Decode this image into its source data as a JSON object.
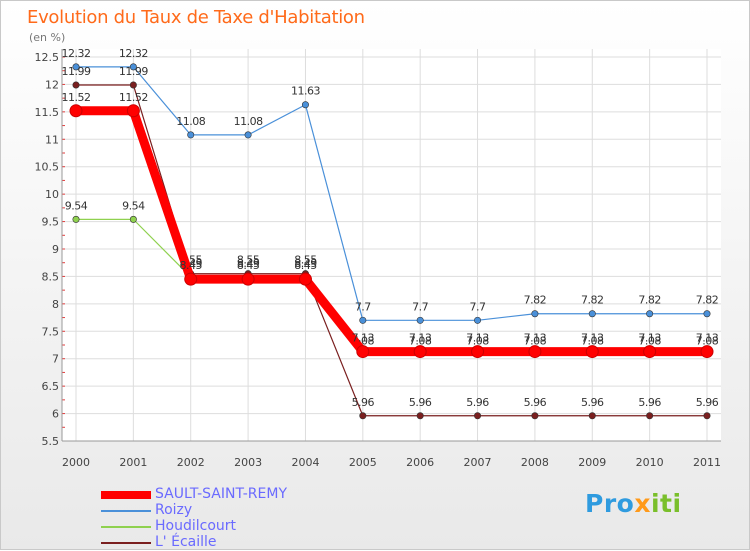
{
  "title": "Evolution du Taux de Taxe d'Habitation",
  "subtitle": "(en %)",
  "logo": {
    "part1": "Pro",
    "part2": "x",
    "part3": "iti",
    "colors": [
      "#2f9bdf",
      "#ff9a1a",
      "#7abf2b"
    ]
  },
  "chart_data": {
    "type": "line",
    "title": "Evolution du Taux de Taxe d'Habitation",
    "subtitle": "(en %)",
    "xlabel": "",
    "ylabel": "",
    "x": [
      "2000",
      "2001",
      "2002",
      "2003",
      "2004",
      "2005",
      "2006",
      "2007",
      "2008",
      "2009",
      "2010",
      "2011"
    ],
    "ylim": [
      5.5,
      12.5
    ],
    "yticks": [
      "5.5",
      "6",
      "6.5",
      "7",
      "7.5",
      "8",
      "8.5",
      "9",
      "9.5",
      "10",
      "10.5",
      "11",
      "11.5",
      "12",
      "12.5"
    ],
    "grid": true,
    "legend_position": "bottom-left",
    "series": [
      {
        "name": "Roizy",
        "color": "#4a90d9",
        "emphasis": "thin",
        "values": [
          12.32,
          12.32,
          11.08,
          11.08,
          11.63,
          7.7,
          7.7,
          7.7,
          7.82,
          7.82,
          7.82,
          7.82
        ],
        "labels": [
          "12.32",
          "12.32",
          "11.08",
          "11.08",
          "11.63",
          "7.7",
          "7.7",
          "7.7",
          "7.82",
          "7.82",
          "7.82",
          "7.82"
        ]
      },
      {
        "name": "L' Écaille",
        "color": "#7a1f1f",
        "emphasis": "thin",
        "values": [
          11.99,
          11.99,
          8.55,
          8.55,
          8.55,
          5.96,
          5.96,
          5.96,
          5.96,
          5.96,
          5.96,
          5.96
        ],
        "labels": [
          "11.99",
          "11.99",
          "8.55",
          "8.55",
          "8.55",
          "5.96",
          "5.96",
          "5.96",
          "5.96",
          "5.96",
          "5.96",
          "5.96"
        ]
      },
      {
        "name": "Houdilcourt",
        "color": "#8fd14f",
        "emphasis": "thin",
        "values": [
          9.54,
          9.54,
          8.49,
          8.49,
          8.49,
          7.08,
          7.08,
          7.08,
          7.08,
          7.08,
          7.08,
          7.08
        ],
        "labels": [
          "9.54",
          "9.54",
          "8.49",
          "8.49",
          "8.49",
          "7.08",
          "7.08",
          "7.08",
          "7.08",
          "7.08",
          "7.08",
          "7.08"
        ]
      },
      {
        "name": "SAULT-SAINT-REMY",
        "color": "#ff0000",
        "emphasis": "thick",
        "values": [
          11.52,
          11.52,
          8.45,
          8.45,
          8.45,
          7.13,
          7.13,
          7.13,
          7.13,
          7.13,
          7.13,
          7.13
        ],
        "labels": [
          "11.52",
          "11.52",
          "8.45",
          "8.45",
          "8.45",
          "7.13",
          "7.13",
          "7.13",
          "7.13",
          "7.13",
          "7.13",
          "7.13"
        ]
      }
    ],
    "legend_order": [
      "SAULT-SAINT-REMY",
      "Roizy",
      "Houdilcourt",
      "L' Écaille"
    ]
  }
}
